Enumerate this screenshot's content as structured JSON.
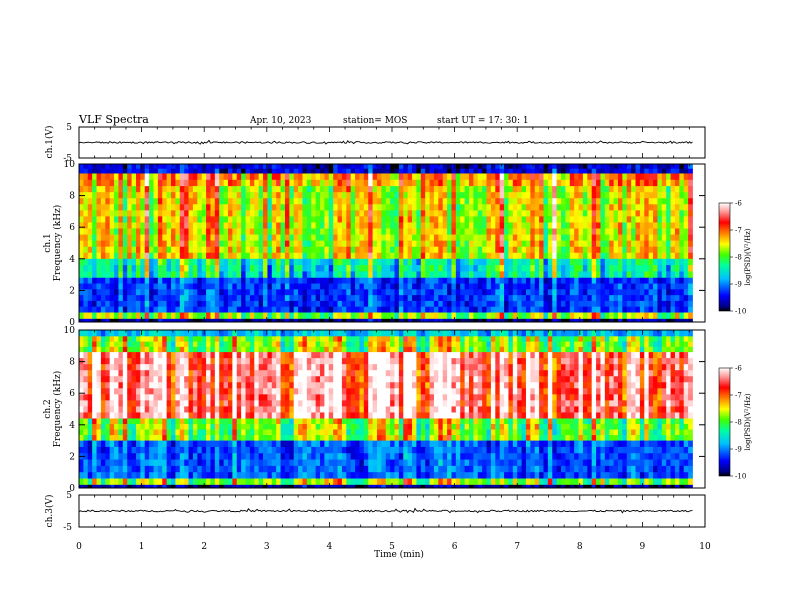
{
  "header": {
    "title": "VLF Spectra",
    "date": "Apr. 10, 2023",
    "station": "station= MOS",
    "start": "start  UT  =   17: 30: 1"
  },
  "chart_data": [
    {
      "type": "line",
      "panel": "ch1-waveform",
      "ylabel": "ch.1(V)",
      "ylim": [
        -5,
        5
      ],
      "yticks": [
        "5",
        "-5"
      ],
      "x_range_min": [
        0,
        10
      ],
      "data_end_min": 9.8,
      "baseline_V": 0
    },
    {
      "type": "heatmap",
      "panel": "ch1-spectrogram",
      "ylabel": "ch.1\nFrequency (kHz)",
      "ylim": [
        0,
        10
      ],
      "yticks": [
        "0",
        "2",
        "4",
        "6",
        "8",
        "10"
      ],
      "x_range_min": [
        0,
        10
      ],
      "data_end_min": 9.8,
      "colorbar": {
        "label": "log(PSD)(V²/Hz)",
        "range": [
          -10,
          -6
        ],
        "ticks": [
          "-6",
          "-7",
          "-8",
          "-9",
          "-10"
        ]
      },
      "bands": [
        {
          "kHz": [
            9.4,
            10.0
          ],
          "level": -9.6
        },
        {
          "kHz": [
            8.6,
            9.4
          ],
          "level": -7.2
        },
        {
          "kHz": [
            4.0,
            8.6
          ],
          "level": -7.6
        },
        {
          "kHz": [
            2.8,
            4.0
          ],
          "level": -8.5
        },
        {
          "kHz": [
            0.6,
            2.8
          ],
          "level": -9.3
        },
        {
          "kHz": [
            0.2,
            0.6
          ],
          "level": -7.8
        },
        {
          "kHz": [
            0.0,
            0.2
          ],
          "level": -9.8
        }
      ]
    },
    {
      "type": "heatmap",
      "panel": "ch2-spectrogram",
      "ylabel": "ch.2\nFrequency (kHz)",
      "ylim": [
        0,
        10
      ],
      "yticks": [
        "0",
        "2",
        "4",
        "6",
        "8",
        "10"
      ],
      "x_range_min": [
        0,
        10
      ],
      "data_end_min": 9.8,
      "colorbar": {
        "label": "log(PSD)(V²/Hz)",
        "range": [
          -10,
          -6
        ],
        "ticks": [
          "-6",
          "-7",
          "-8",
          "-9",
          "-10"
        ]
      },
      "bands": [
        {
          "kHz": [
            9.6,
            10.0
          ],
          "level": -8.8
        },
        {
          "kHz": [
            8.6,
            9.6
          ],
          "level": -7.9
        },
        {
          "kHz": [
            4.4,
            8.6
          ],
          "level": -6.5
        },
        {
          "kHz": [
            3.0,
            4.4
          ],
          "level": -7.9
        },
        {
          "kHz": [
            0.6,
            3.0
          ],
          "level": -9.2
        },
        {
          "kHz": [
            0.2,
            0.6
          ],
          "level": -7.9
        },
        {
          "kHz": [
            0.0,
            0.2
          ],
          "level": -9.8
        }
      ]
    },
    {
      "type": "line",
      "panel": "ch3-waveform",
      "ylabel": "ch.3(V)",
      "ylim": [
        -5,
        5
      ],
      "yticks": [
        "5",
        "-5"
      ],
      "x_range_min": [
        0,
        10
      ],
      "data_end_min": 9.8,
      "baseline_V": 0
    }
  ],
  "xaxis": {
    "label": "Time (min)",
    "ticks": [
      "0",
      "1",
      "2",
      "3",
      "4",
      "5",
      "6",
      "7",
      "8",
      "9",
      "10"
    ]
  }
}
